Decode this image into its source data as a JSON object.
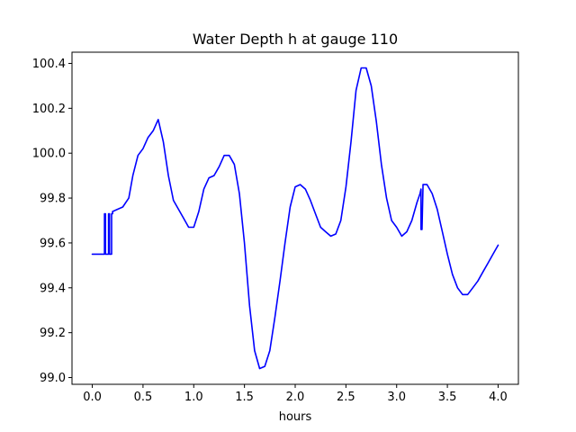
{
  "chart_data": {
    "type": "line",
    "title": "Water Depth h at gauge 110",
    "xlabel": "hours",
    "ylabel": "",
    "xlim": [
      -0.2,
      4.2
    ],
    "ylim": [
      98.97,
      100.45
    ],
    "grid": false,
    "xticks": [
      0.0,
      0.5,
      1.0,
      1.5,
      2.0,
      2.5,
      3.0,
      3.5,
      4.0
    ],
    "xtick_labels": [
      "0.0",
      "0.5",
      "1.0",
      "1.5",
      "2.0",
      "2.5",
      "3.0",
      "3.5",
      "4.0"
    ],
    "yticks": [
      99.0,
      99.2,
      99.4,
      99.6,
      99.8,
      100.0,
      100.2,
      100.4
    ],
    "ytick_labels": [
      "99.0",
      "99.2",
      "99.4",
      "99.6",
      "99.8",
      "100.0",
      "100.2",
      "100.4"
    ],
    "series": [
      {
        "color": "#0000ff",
        "x": [
          0.0,
          0.1,
          0.12,
          0.12,
          0.13,
          0.13,
          0.16,
          0.16,
          0.17,
          0.17,
          0.19,
          0.19,
          0.2,
          0.2,
          0.3,
          0.36,
          0.4,
          0.45,
          0.5,
          0.55,
          0.6,
          0.65,
          0.7,
          0.75,
          0.8,
          0.9,
          0.95,
          1.0,
          1.05,
          1.1,
          1.15,
          1.2,
          1.25,
          1.3,
          1.35,
          1.4,
          1.45,
          1.5,
          1.55,
          1.6,
          1.65,
          1.7,
          1.75,
          1.8,
          1.85,
          1.9,
          1.95,
          2.0,
          2.05,
          2.1,
          2.15,
          2.2,
          2.25,
          2.3,
          2.35,
          2.4,
          2.45,
          2.5,
          2.55,
          2.6,
          2.65,
          2.7,
          2.75,
          2.8,
          2.85,
          2.9,
          2.95,
          3.0,
          3.05,
          3.1,
          3.15,
          3.2,
          3.23,
          3.24,
          3.24,
          3.25,
          3.26,
          3.26,
          3.3,
          3.35,
          3.4,
          3.45,
          3.5,
          3.55,
          3.6,
          3.65,
          3.7,
          3.75,
          3.8,
          3.85,
          3.9,
          3.95,
          4.0
        ],
        "y": [
          99.55,
          99.55,
          99.55,
          99.73,
          99.73,
          99.55,
          99.55,
          99.73,
          99.73,
          99.55,
          99.55,
          99.73,
          99.73,
          99.74,
          99.76,
          99.8,
          99.9,
          99.99,
          100.02,
          100.07,
          100.1,
          100.15,
          100.05,
          99.9,
          99.79,
          99.71,
          99.67,
          99.67,
          99.74,
          99.84,
          99.89,
          99.9,
          99.94,
          99.99,
          99.99,
          99.95,
          99.82,
          99.6,
          99.32,
          99.12,
          99.04,
          99.05,
          99.12,
          99.27,
          99.43,
          99.6,
          99.76,
          99.85,
          99.86,
          99.84,
          99.79,
          99.73,
          99.67,
          99.65,
          99.63,
          99.64,
          99.7,
          99.85,
          100.05,
          100.28,
          100.38,
          100.38,
          100.3,
          100.14,
          99.95,
          99.8,
          99.7,
          99.67,
          99.63,
          99.65,
          99.7,
          99.78,
          99.82,
          99.84,
          99.66,
          99.66,
          99.85,
          99.86,
          99.86,
          99.82,
          99.75,
          99.65,
          99.55,
          99.46,
          99.4,
          99.37,
          99.37,
          99.4,
          99.43,
          99.47,
          99.51,
          99.55,
          99.59
        ]
      }
    ]
  }
}
